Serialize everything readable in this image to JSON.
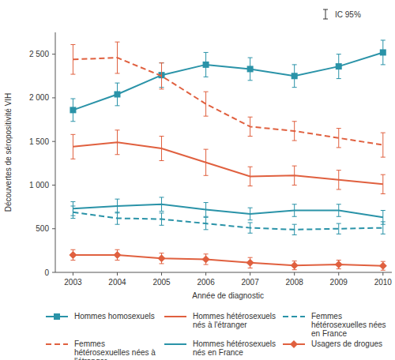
{
  "chart_data": {
    "type": "line",
    "y_label": "Découvertes de séropositivité VIH",
    "x_label": "Année de diagnostic",
    "annotations": [
      "IC 95%"
    ],
    "x": [
      2003,
      2004,
      2005,
      2006,
      2007,
      2008,
      2009,
      2010
    ],
    "xlim": [
      2002.6,
      2010.2
    ],
    "xticks": [
      2003,
      2004,
      2005,
      2006,
      2007,
      2008,
      2009,
      2010
    ],
    "ylim": [
      0,
      2750
    ],
    "yticks": [
      0,
      500,
      {
        "value": 1000,
        "label": "1 000"
      },
      {
        "value": 1500,
        "label": "1 500"
      },
      {
        "value": 2000,
        "label": "2 000"
      },
      {
        "value": 2500,
        "label": "2 500"
      }
    ],
    "grid": false,
    "legend": "bottom",
    "series": [
      {
        "name": "Hommes homosexuels",
        "color": "#2a93a8",
        "marker": "square",
        "line_style": "solid",
        "values": [
          1860,
          2040,
          2260,
          2380,
          2330,
          2250,
          2360,
          2520
        ],
        "errors": [
          130,
          130,
          140,
          140,
          130,
          130,
          140,
          140
        ]
      },
      {
        "name": "Hommes hétérosexuels nés à l'étranger",
        "color": "#e0603f",
        "marker": "none",
        "line_style": "solid",
        "values": [
          1440,
          1490,
          1420,
          1260,
          1100,
          1110,
          1060,
          1010
        ],
        "errors": [
          140,
          140,
          140,
          150,
          110,
          110,
          110,
          110
        ]
      },
      {
        "name": "Femmes hétérosexuelles nées en France",
        "color": "#2a93a8",
        "marker": "none",
        "line_style": "dashed",
        "values": [
          690,
          620,
          610,
          560,
          510,
          490,
          500,
          510
        ],
        "errors": [
          70,
          70,
          70,
          70,
          60,
          60,
          60,
          70
        ]
      },
      {
        "name": "Femmes hétérosexuelles nées à l'étranger",
        "color": "#e0603f",
        "marker": "none",
        "line_style": "dashed",
        "values": [
          2440,
          2460,
          2250,
          1930,
          1670,
          1620,
          1540,
          1460
        ],
        "errors": [
          170,
          180,
          150,
          140,
          110,
          110,
          110,
          140
        ]
      },
      {
        "name": "Hommes hétérosexuels nés en France",
        "color": "#2a93a8",
        "marker": "none",
        "line_style": "solid",
        "values": [
          730,
          760,
          780,
          720,
          670,
          710,
          710,
          630
        ],
        "errors": [
          80,
          80,
          80,
          80,
          70,
          70,
          70,
          80
        ]
      },
      {
        "name": "Usagers de drogues",
        "color": "#e0603f",
        "marker": "diamond",
        "line_style": "solid",
        "values": [
          200,
          200,
          160,
          150,
          110,
          80,
          90,
          75
        ],
        "errors": [
          60,
          60,
          60,
          60,
          60,
          50,
          50,
          50
        ]
      }
    ]
  }
}
